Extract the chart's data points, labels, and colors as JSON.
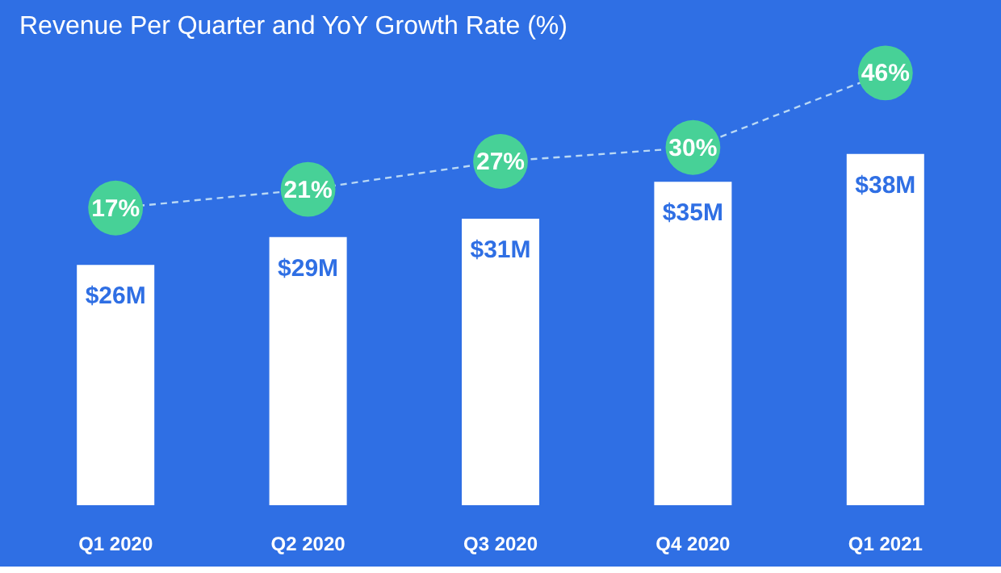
{
  "chart_data": {
    "type": "bar",
    "title": "Revenue Per Quarter and YoY Growth Rate (%)",
    "categories": [
      "Q1 2020",
      "Q2 2020",
      "Q3 2020",
      "Q4 2020",
      "Q1 2021"
    ],
    "series": [
      {
        "color": "#ffffff",
        "values": [
          26,
          29,
          31,
          35,
          38
        ],
        "value_labels": [
          "$26M",
          "$29M",
          "$31M",
          "$35M",
          "$38M"
        ]
      },
      {
        "type": "line",
        "axis": "y2",
        "color": "#47d197",
        "line_style": "dashed",
        "marker": "circle",
        "values": [
          17,
          21,
          27,
          30,
          46
        ],
        "value_labels": [
          "17%",
          "21%",
          "27%",
          "30%",
          "46%"
        ]
      }
    ],
    "tick_labels": "x"
  }
}
